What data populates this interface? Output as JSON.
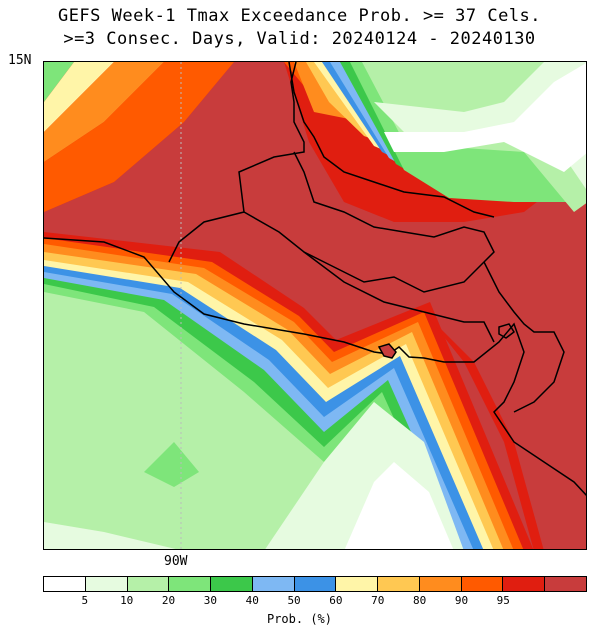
{
  "title": {
    "line1": "GEFS Week-1 Tmax Exceedance Prob. >= 37 Cels.",
    "line2": ">=3 Consec. Days, Valid: 20240124 - 20240130"
  },
  "axes": {
    "lat_label": "15N",
    "lon_label": "90W"
  },
  "colorbar": {
    "title": "Prob. (%)",
    "colors": [
      "#ffffff",
      "#e6fbe0",
      "#b5f0a8",
      "#7ee57a",
      "#3cc84a",
      "#7eb8f3",
      "#3c92e6",
      "#fff5a8",
      "#ffc852",
      "#ff8c1e",
      "#ff5a00",
      "#e01e10",
      "#c83c3c"
    ],
    "tick_labels": [
      "5",
      "10",
      "20",
      "30",
      "40",
      "50",
      "60",
      "70",
      "80",
      "90",
      "95"
    ]
  },
  "map": {
    "levels": {
      "white": "#ffffff",
      "p5": "#e6fbe0",
      "p10": "#b5f0a8",
      "p20": "#7ee57a",
      "p30": "#3cc84a",
      "p40": "#7eb8f3",
      "p50": "#3c92e6",
      "p60": "#fff5a8",
      "p70": "#ffc852",
      "p80": "#ff8c1e",
      "p90": "#ff5a00",
      "p95": "#e01e10",
      "p100": "#c83c3c"
    }
  }
}
